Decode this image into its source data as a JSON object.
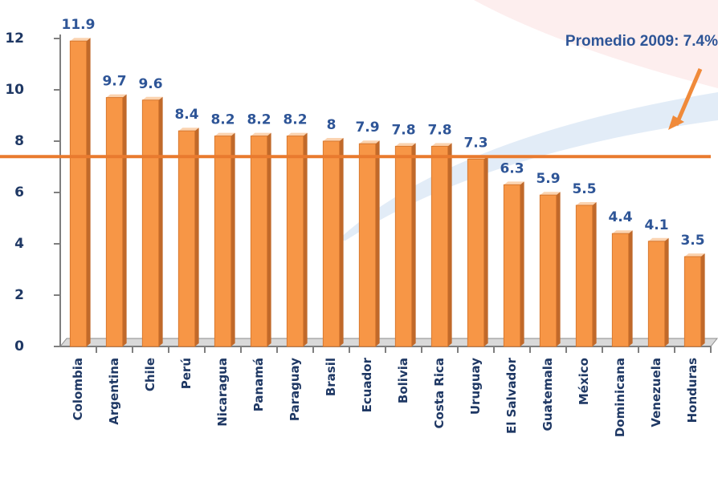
{
  "chart_data": {
    "type": "bar",
    "annotation": "Promedio 2009: 7.4%",
    "reference_line": 7.4,
    "categories": [
      "Colombia",
      "Argentina",
      "Chile",
      "Perú",
      "Nicaragua",
      "Panamá",
      "Paraguay",
      "Brasil",
      "Ecuador",
      "Bolivia",
      "Costa Rica",
      "Uruguay",
      "El Salvador",
      "Guatemala",
      "México",
      "Dominicana",
      "Venezuela",
      "Honduras"
    ],
    "values": [
      11.9,
      9.7,
      9.6,
      8.4,
      8.2,
      8.2,
      8.2,
      8,
      7.9,
      7.8,
      7.8,
      7.3,
      6.3,
      5.9,
      5.5,
      4.4,
      4.1,
      3.5
    ],
    "color": "#f79646",
    "ylim": [
      0,
      12
    ],
    "yticks": [
      0,
      2,
      4,
      6,
      8,
      10,
      12
    ]
  }
}
